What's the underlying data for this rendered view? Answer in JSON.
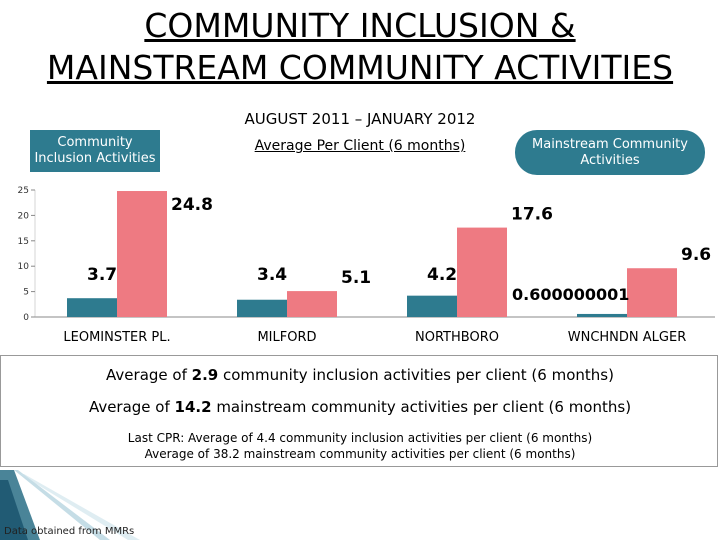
{
  "header": {
    "title_line1": "COMMUNITY INCLUSION &",
    "title_line2": "MAINSTREAM COMMUNITY ACTIVITIES",
    "period": "AUGUST 2011 – JANUARY 2012",
    "per_client_label": "Average Per Client (6 months)"
  },
  "legend": {
    "community_inclusion": "Community Inclusion Activities",
    "mainstream": "Mainstream Community Activities"
  },
  "colors": {
    "community_inclusion": "#2e7b8f",
    "mainstream": "#ee7a82"
  },
  "chart_data": {
    "type": "bar",
    "categories": [
      "LEOMINSTER PL.",
      "MILFORD",
      "NORTHBORO",
      "WNCHNDN ALGER"
    ],
    "series": [
      {
        "name": "Community Inclusion Activities",
        "values": [
          3.7,
          3.4,
          4.2,
          0.6
        ],
        "labels": [
          "3.7",
          "3.4",
          "4.2",
          ""
        ]
      },
      {
        "name": "Mainstream Community Activities",
        "values": [
          24.8,
          5.1,
          17.6,
          9.6
        ],
        "labels": [
          "24.8",
          "5.1",
          "17.6",
          "9.6"
        ]
      }
    ],
    "extra_label": "0.600000001",
    "y_ticks": [
      "25",
      "20",
      "15",
      "10",
      "5",
      "0"
    ],
    "ylim": [
      0,
      25
    ]
  },
  "summary": {
    "avg1_prefix": "Average of ",
    "avg1_value": "2.9",
    "avg1_suffix": " community inclusion activities per client (6 months)",
    "avg2_prefix": "Average of ",
    "avg2_value": "14.2",
    "avg2_suffix": " mainstream community activities per client (6 months)",
    "cpr_line1": "Last CPR: Average of 4.4 community inclusion activities per client (6 months)",
    "cpr_line2": "Average of 38.2 mainstream community activities per client (6 months)"
  },
  "source": "Data obtained from MMRs"
}
